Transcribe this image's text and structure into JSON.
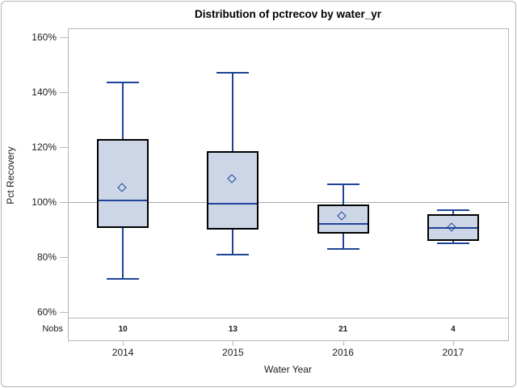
{
  "window": {
    "kind": "sas-ods-graphics-boxplot"
  },
  "colors": {
    "box_fill": "#ccd6e6",
    "box_border": "#000000",
    "whisker_blue": "#1e4499",
    "reference_line": "#a3a6a9",
    "frame_gray": "#b4b9bd",
    "text": "#1c1c1c",
    "background": "#ffffff"
  },
  "nobs_row": {
    "label": "Nobs",
    "values": [
      "10",
      "13",
      "21",
      "4"
    ]
  },
  "chart_data": {
    "type": "box",
    "title": "Distribution of pctrecov by water_yr",
    "xlabel": "Water Year",
    "ylabel": "Pct Recovery",
    "categories": [
      "2014",
      "2015",
      "2016",
      "2017"
    ],
    "y_ticks": [
      {
        "value": 160,
        "label": "160%"
      },
      {
        "value": 140,
        "label": "140%"
      },
      {
        "value": 120,
        "label": "120%"
      },
      {
        "value": 100,
        "label": "100%"
      },
      {
        "value": 80,
        "label": "80%"
      },
      {
        "value": 60,
        "label": "60%"
      }
    ],
    "ylim": [
      60,
      160
    ],
    "y_unit": "percent",
    "reference_line": 100,
    "grid": false,
    "legend": "none",
    "series": [
      {
        "category": "2014",
        "n": 10,
        "whisker_low": 72,
        "q1": 90.5,
        "median": 100.5,
        "q3": 123,
        "whisker_high": 143.5,
        "mean": 105
      },
      {
        "category": "2015",
        "n": 13,
        "whisker_low": 81,
        "q1": 90,
        "median": 99.5,
        "q3": 118.5,
        "whisker_high": 147,
        "mean": 108
      },
      {
        "category": "2016",
        "n": 21,
        "whisker_low": 83,
        "q1": 88.5,
        "median": 92,
        "q3": 99,
        "whisker_high": 106.5,
        "mean": 94.5
      },
      {
        "category": "2017",
        "n": 4,
        "whisker_low": 85,
        "q1": 86,
        "median": 90.5,
        "q3": 95.5,
        "whisker_high": 97,
        "mean": 90.5
      }
    ]
  }
}
